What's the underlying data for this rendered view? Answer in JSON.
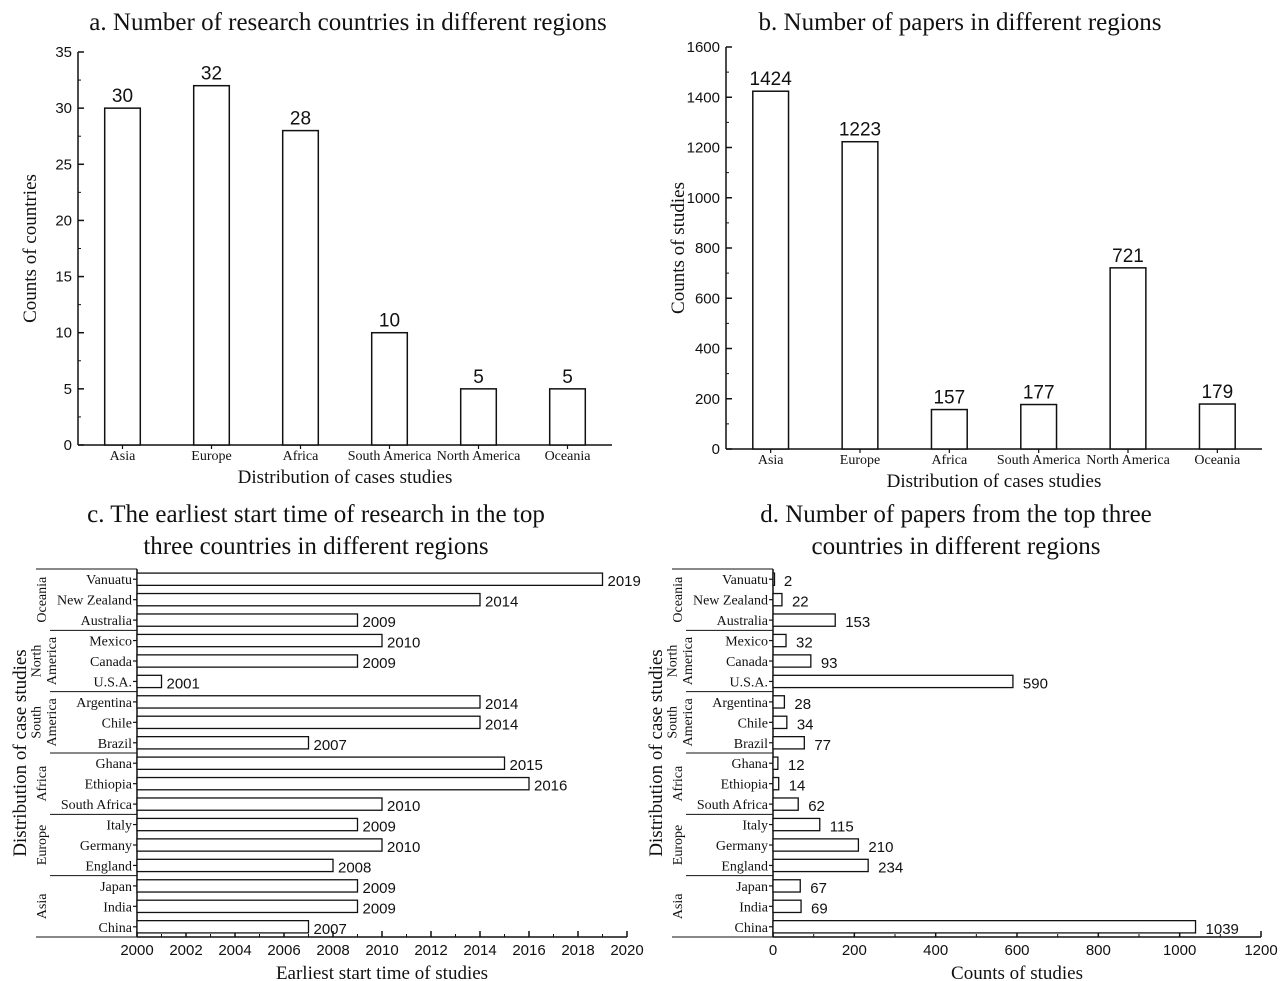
{
  "chart_data": [
    {
      "type": "bar",
      "title": "a. Number of research countries in different regions",
      "xlabel": "Distribution of cases studies",
      "ylabel": "Counts of countries",
      "categories": [
        "Asia",
        "Europe",
        "Africa",
        "South America",
        "North America",
        "Oceania"
      ],
      "values": [
        30,
        32,
        28,
        10,
        5,
        5
      ],
      "ylim": [
        0,
        35
      ],
      "yticks": [
        0,
        5,
        10,
        15,
        20,
        25,
        30,
        35
      ],
      "grid": false
    },
    {
      "type": "bar",
      "title": "b. Number of papers in different regions",
      "xlabel": "Distribution of cases studies",
      "ylabel": "Counts of studies",
      "categories": [
        "Asia",
        "Europe",
        "Africa",
        "South America",
        "North America",
        "Oceania"
      ],
      "values": [
        1424,
        1223,
        157,
        177,
        721,
        179
      ],
      "ylim": [
        0,
        1600
      ],
      "yticks": [
        0,
        200,
        400,
        600,
        800,
        1000,
        1200,
        1400,
        1600
      ],
      "grid": false
    },
    {
      "type": "bar",
      "orientation": "horizontal",
      "title": [
        "c. The earliest start time of research in the top",
        "three countries in different regions"
      ],
      "xlabel": "Earliest start time of studies",
      "ylabel": "Distribution of case studies",
      "groups": [
        {
          "name": "Oceania",
          "items": [
            {
              "label": "Vanuatu",
              "value": 2019
            },
            {
              "label": "New Zealand",
              "value": 2014
            },
            {
              "label": "Australia",
              "value": 2009
            }
          ]
        },
        {
          "name": "North America",
          "items": [
            {
              "label": "Mexico",
              "value": 2010
            },
            {
              "label": "Canada",
              "value": 2009
            },
            {
              "label": "U.S.A.",
              "value": 2001
            }
          ]
        },
        {
          "name": "South America",
          "items": [
            {
              "label": "Argentina",
              "value": 2014
            },
            {
              "label": "Chile",
              "value": 2014
            },
            {
              "label": "Brazil",
              "value": 2007
            }
          ]
        },
        {
          "name": "Africa",
          "items": [
            {
              "label": "Ghana",
              "value": 2015
            },
            {
              "label": "Ethiopia",
              "value": 2016
            },
            {
              "label": "South Africa",
              "value": 2010
            }
          ]
        },
        {
          "name": "Europe",
          "items": [
            {
              "label": "Italy",
              "value": 2009
            },
            {
              "label": "Germany",
              "value": 2010
            },
            {
              "label": "England",
              "value": 2008
            }
          ]
        },
        {
          "name": "Asia",
          "items": [
            {
              "label": "Japan",
              "value": 2009
            },
            {
              "label": "India",
              "value": 2009
            },
            {
              "label": "China",
              "value": 2007
            }
          ]
        }
      ],
      "xlim": [
        2000,
        2020
      ],
      "xticks": [
        2000,
        2002,
        2004,
        2006,
        2008,
        2010,
        2012,
        2014,
        2016,
        2018,
        2020
      ],
      "grid": false
    },
    {
      "type": "bar",
      "orientation": "horizontal",
      "title": [
        "d. Number of papers from the top three",
        "countries in different regions"
      ],
      "xlabel": "Counts of studies",
      "ylabel": "Distribution of case studies",
      "groups": [
        {
          "name": "Oceania",
          "items": [
            {
              "label": "Vanuatu",
              "value": 2
            },
            {
              "label": "New Zealand",
              "value": 22
            },
            {
              "label": "Australia",
              "value": 153
            }
          ]
        },
        {
          "name": "North America",
          "items": [
            {
              "label": "Mexico",
              "value": 32
            },
            {
              "label": "Canada",
              "value": 93
            },
            {
              "label": "U.S.A.",
              "value": 590
            }
          ]
        },
        {
          "name": "South America",
          "items": [
            {
              "label": "Argentina",
              "value": 28
            },
            {
              "label": "Chile",
              "value": 34
            },
            {
              "label": "Brazil",
              "value": 77
            }
          ]
        },
        {
          "name": "Africa",
          "items": [
            {
              "label": "Ghana",
              "value": 12
            },
            {
              "label": "Ethiopia",
              "value": 14
            },
            {
              "label": "South Africa",
              "value": 62
            }
          ]
        },
        {
          "name": "Europe",
          "items": [
            {
              "label": "Italy",
              "value": 115
            },
            {
              "label": "Germany",
              "value": 210
            },
            {
              "label": "England",
              "value": 234
            }
          ]
        },
        {
          "name": "Asia",
          "items": [
            {
              "label": "Japan",
              "value": 67
            },
            {
              "label": "India",
              "value": 69
            },
            {
              "label": "China",
              "value": 1039
            }
          ]
        }
      ],
      "xlim": [
        0,
        1200
      ],
      "xticks": [
        0,
        200,
        400,
        600,
        800,
        1000,
        1200
      ],
      "grid": false
    }
  ]
}
